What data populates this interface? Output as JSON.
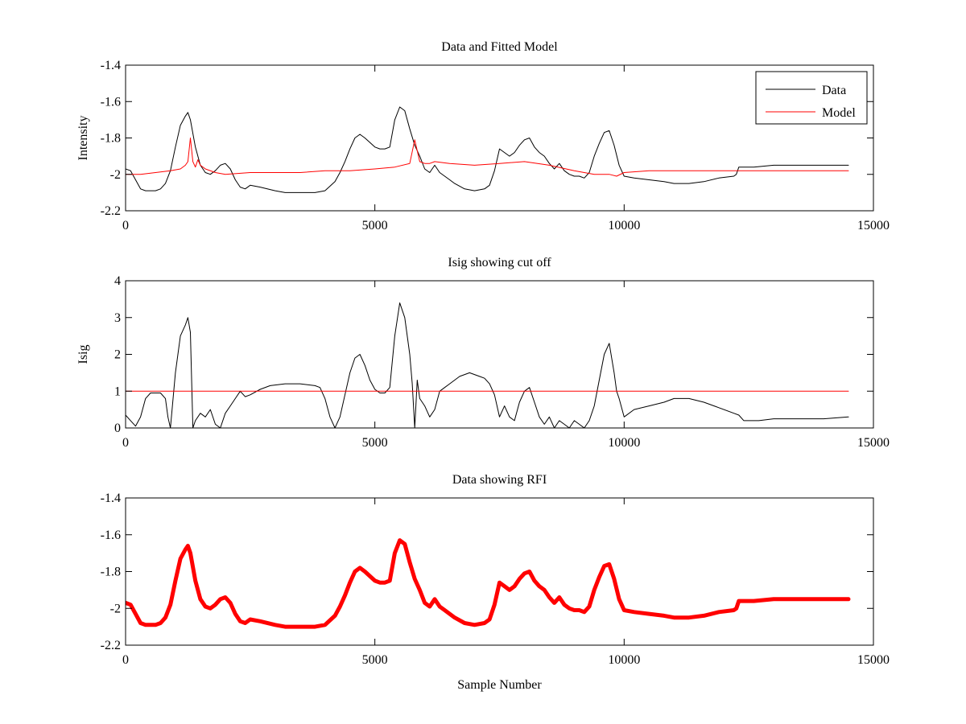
{
  "colors": {
    "data": "#000000",
    "model": "#ff0000",
    "rfi": "#ff0000",
    "axes": "#000000"
  },
  "chart_data": [
    {
      "type": "line",
      "title": "Data and Fitted Model",
      "xlabel": "",
      "ylabel": "Intensity",
      "xlim": [
        0,
        15000
      ],
      "ylim": [
        -2.2,
        -1.4
      ],
      "xticks": [
        0,
        5000,
        10000,
        15000
      ],
      "xtick_labels": [
        "0",
        "5000",
        "10000",
        "15000"
      ],
      "yticks": [
        -2.2,
        -2,
        -1.8,
        -1.6,
        -1.4
      ],
      "ytick_labels": [
        "-2.2",
        "-2",
        "-1.8",
        "-1.6",
        "-1.4"
      ],
      "grid": false,
      "legend": {
        "position": "top-right",
        "entries": [
          "Data",
          "Model"
        ]
      },
      "series": [
        {
          "name": "Data",
          "color": "#000000",
          "x": [
            0,
            100,
            200,
            300,
            400,
            600,
            700,
            800,
            900,
            1000,
            1100,
            1200,
            1250,
            1300,
            1400,
            1500,
            1600,
            1700,
            1800,
            1900,
            2000,
            2100,
            2200,
            2300,
            2400,
            2500,
            2700,
            3000,
            3200,
            3500,
            3800,
            4000,
            4200,
            4300,
            4400,
            4500,
            4600,
            4700,
            4800,
            5000,
            5100,
            5200,
            5300,
            5400,
            5500,
            5600,
            5700,
            5800,
            5900,
            6000,
            6100,
            6200,
            6300,
            6400,
            6500,
            6600,
            6800,
            7000,
            7200,
            7300,
            7400,
            7500,
            7600,
            7700,
            7800,
            7900,
            8000,
            8100,
            8200,
            8300,
            8400,
            8500,
            8600,
            8700,
            8800,
            8900,
            9000,
            9100,
            9200,
            9300,
            9400,
            9500,
            9600,
            9700,
            9800,
            9900,
            10000,
            10200,
            10500,
            10800,
            11000,
            11300,
            11600,
            11900,
            12200,
            12250,
            12300,
            12600,
            13000,
            13500,
            14000,
            14500
          ],
          "y": [
            -1.97,
            -1.98,
            -2.03,
            -2.08,
            -2.09,
            -2.09,
            -2.08,
            -2.05,
            -1.98,
            -1.85,
            -1.73,
            -1.68,
            -1.66,
            -1.7,
            -1.85,
            -1.95,
            -1.99,
            -2.0,
            -1.98,
            -1.95,
            -1.94,
            -1.97,
            -2.03,
            -2.07,
            -2.08,
            -2.06,
            -2.07,
            -2.09,
            -2.1,
            -2.1,
            -2.1,
            -2.09,
            -2.04,
            -1.99,
            -1.93,
            -1.86,
            -1.8,
            -1.78,
            -1.8,
            -1.85,
            -1.86,
            -1.86,
            -1.85,
            -1.7,
            -1.63,
            -1.65,
            -1.75,
            -1.84,
            -1.9,
            -1.97,
            -1.99,
            -1.95,
            -1.99,
            -2.01,
            -2.03,
            -2.05,
            -2.08,
            -2.09,
            -2.08,
            -2.06,
            -1.98,
            -1.86,
            -1.88,
            -1.9,
            -1.88,
            -1.84,
            -1.81,
            -1.8,
            -1.85,
            -1.88,
            -1.9,
            -1.94,
            -1.97,
            -1.94,
            -1.98,
            -2.0,
            -2.01,
            -2.01,
            -2.02,
            -1.99,
            -1.9,
            -1.83,
            -1.77,
            -1.76,
            -1.84,
            -1.95,
            -2.01,
            -2.02,
            -2.03,
            -2.04,
            -2.05,
            -2.05,
            -2.04,
            -2.02,
            -2.01,
            -2.0,
            -1.96,
            -1.96,
            -1.95,
            -1.95,
            -1.95,
            -1.95
          ]
        },
        {
          "name": "Model",
          "color": "#ff0000",
          "x": [
            0,
            300,
            600,
            900,
            1100,
            1200,
            1250,
            1300,
            1350,
            1400,
            1450,
            1500,
            1600,
            1800,
            2000,
            2500,
            3000,
            3500,
            4000,
            4500,
            5000,
            5400,
            5700,
            5800,
            5900,
            6000,
            6100,
            6200,
            6500,
            7000,
            7500,
            8000,
            8500,
            9000,
            9400,
            9700,
            9850,
            10000,
            10500,
            11000,
            12000,
            13000,
            14000,
            14500
          ],
          "y": [
            -2.0,
            -2.0,
            -1.99,
            -1.98,
            -1.97,
            -1.95,
            -1.93,
            -1.8,
            -1.93,
            -1.96,
            -1.92,
            -1.95,
            -1.97,
            -1.99,
            -2.0,
            -1.99,
            -1.99,
            -1.99,
            -1.98,
            -1.98,
            -1.97,
            -1.96,
            -1.94,
            -1.81,
            -1.93,
            -1.94,
            -1.94,
            -1.93,
            -1.94,
            -1.95,
            -1.94,
            -1.93,
            -1.95,
            -1.98,
            -2.0,
            -2.0,
            -2.01,
            -1.99,
            -1.98,
            -1.98,
            -1.98,
            -1.98,
            -1.98,
            -1.98
          ]
        }
      ]
    },
    {
      "type": "line",
      "title": "Isig showing cut off",
      "xlabel": "",
      "ylabel": "Isig",
      "xlim": [
        0,
        15000
      ],
      "ylim": [
        0,
        4
      ],
      "xticks": [
        0,
        5000,
        10000,
        15000
      ],
      "xtick_labels": [
        "0",
        "5000",
        "10000",
        "15000"
      ],
      "yticks": [
        0,
        1,
        2,
        3,
        4
      ],
      "ytick_labels": [
        "0",
        "1",
        "2",
        "3",
        "4"
      ],
      "grid": false,
      "series": [
        {
          "color": "#000000",
          "x": [
            0,
            100,
            200,
            300,
            400,
            500,
            600,
            700,
            800,
            850,
            900,
            1000,
            1100,
            1200,
            1250,
            1300,
            1350,
            1400,
            1500,
            1600,
            1700,
            1800,
            1900,
            2000,
            2100,
            2200,
            2300,
            2400,
            2500,
            2700,
            2900,
            3200,
            3500,
            3800,
            3900,
            4000,
            4100,
            4200,
            4300,
            4400,
            4500,
            4600,
            4700,
            4800,
            4900,
            5000,
            5100,
            5200,
            5300,
            5400,
            5500,
            5600,
            5700,
            5750,
            5800,
            5850,
            5900,
            6000,
            6100,
            6200,
            6300,
            6400,
            6500,
            6700,
            6900,
            7100,
            7200,
            7300,
            7400,
            7500,
            7600,
            7700,
            7800,
            7900,
            8000,
            8100,
            8200,
            8300,
            8400,
            8500,
            8600,
            8700,
            8800,
            8900,
            9000,
            9100,
            9200,
            9300,
            9400,
            9500,
            9600,
            9700,
            9800,
            9850,
            9900,
            10000,
            10200,
            10500,
            10800,
            11000,
            11300,
            11600,
            11900,
            12200,
            12300,
            12400,
            12700,
            13000,
            13500,
            14000,
            14500
          ],
          "y": [
            0.35,
            0.2,
            0.05,
            0.3,
            0.8,
            0.95,
            0.95,
            0.95,
            0.8,
            0.3,
            0.0,
            1.5,
            2.5,
            2.8,
            3.0,
            2.6,
            0.0,
            0.2,
            0.4,
            0.3,
            0.5,
            0.1,
            0.0,
            0.4,
            0.6,
            0.8,
            1.0,
            0.85,
            0.9,
            1.05,
            1.15,
            1.2,
            1.2,
            1.15,
            1.1,
            0.8,
            0.3,
            0.0,
            0.3,
            0.9,
            1.5,
            1.9,
            2.0,
            1.7,
            1.3,
            1.05,
            0.95,
            0.95,
            1.1,
            2.5,
            3.4,
            3.0,
            2.0,
            1.2,
            0.0,
            1.3,
            0.8,
            0.6,
            0.3,
            0.5,
            1.0,
            1.1,
            1.2,
            1.4,
            1.5,
            1.4,
            1.35,
            1.2,
            0.9,
            0.3,
            0.6,
            0.3,
            0.2,
            0.7,
            1.0,
            1.1,
            0.7,
            0.3,
            0.1,
            0.3,
            0.0,
            0.2,
            0.1,
            0.0,
            0.2,
            0.1,
            0.0,
            0.2,
            0.6,
            1.3,
            2.0,
            2.3,
            1.5,
            1.0,
            0.8,
            0.3,
            0.5,
            0.6,
            0.7,
            0.8,
            0.8,
            0.7,
            0.55,
            0.4,
            0.35,
            0.2,
            0.2,
            0.25,
            0.25,
            0.25,
            0.3
          ]
        },
        {
          "color": "#ff0000",
          "x": [
            0,
            14500
          ],
          "y": [
            1,
            1
          ]
        }
      ]
    },
    {
      "type": "line",
      "title": "Data showing RFI",
      "xlabel": "Sample Number",
      "ylabel": "",
      "xlim": [
        0,
        15000
      ],
      "ylim": [
        -2.2,
        -1.4
      ],
      "xticks": [
        0,
        5000,
        10000,
        15000
      ],
      "xtick_labels": [
        "0",
        "5000",
        "10000",
        "15000"
      ],
      "yticks": [
        -2.2,
        -2,
        -1.8,
        -1.6,
        -1.4
      ],
      "ytick_labels": [
        "-2.2",
        "-2",
        "-1.8",
        "-1.6",
        "-1.4"
      ],
      "grid": false,
      "series": [
        {
          "color": "#ff0000",
          "x": [
            0,
            100,
            200,
            300,
            400,
            600,
            700,
            800,
            900,
            1000,
            1100,
            1200,
            1250,
            1300,
            1400,
            1500,
            1600,
            1700,
            1800,
            1900,
            2000,
            2100,
            2200,
            2300,
            2400,
            2500,
            2700,
            3000,
            3200,
            3500,
            3800,
            4000,
            4200,
            4300,
            4400,
            4500,
            4600,
            4700,
            4800,
            5000,
            5100,
            5200,
            5300,
            5400,
            5500,
            5600,
            5700,
            5800,
            5900,
            6000,
            6100,
            6200,
            6300,
            6400,
            6500,
            6600,
            6800,
            7000,
            7200,
            7300,
            7400,
            7500,
            7600,
            7700,
            7800,
            7900,
            8000,
            8100,
            8200,
            8300,
            8400,
            8500,
            8600,
            8700,
            8800,
            8900,
            9000,
            9100,
            9200,
            9300,
            9400,
            9500,
            9600,
            9700,
            9800,
            9900,
            10000,
            10200,
            10500,
            10800,
            11000,
            11300,
            11600,
            11900,
            12200,
            12250,
            12300,
            12600,
            13000,
            13500,
            14000,
            14500
          ],
          "y": [
            -1.97,
            -1.98,
            -2.03,
            -2.08,
            -2.09,
            -2.09,
            -2.08,
            -2.05,
            -1.98,
            -1.85,
            -1.73,
            -1.68,
            -1.66,
            -1.7,
            -1.85,
            -1.95,
            -1.99,
            -2.0,
            -1.98,
            -1.95,
            -1.94,
            -1.97,
            -2.03,
            -2.07,
            -2.08,
            -2.06,
            -2.07,
            -2.09,
            -2.1,
            -2.1,
            -2.1,
            -2.09,
            -2.04,
            -1.99,
            -1.93,
            -1.86,
            -1.8,
            -1.78,
            -1.8,
            -1.85,
            -1.86,
            -1.86,
            -1.85,
            -1.7,
            -1.63,
            -1.65,
            -1.75,
            -1.84,
            -1.9,
            -1.97,
            -1.99,
            -1.95,
            -1.99,
            -2.01,
            -2.03,
            -2.05,
            -2.08,
            -2.09,
            -2.08,
            -2.06,
            -1.98,
            -1.86,
            -1.88,
            -1.9,
            -1.88,
            -1.84,
            -1.81,
            -1.8,
            -1.85,
            -1.88,
            -1.9,
            -1.94,
            -1.97,
            -1.94,
            -1.98,
            -2.0,
            -2.01,
            -2.01,
            -2.02,
            -1.99,
            -1.9,
            -1.83,
            -1.77,
            -1.76,
            -1.84,
            -1.95,
            -2.01,
            -2.02,
            -2.03,
            -2.04,
            -2.05,
            -2.05,
            -2.04,
            -2.02,
            -2.01,
            -2.0,
            -1.96,
            -1.96,
            -1.95,
            -1.95,
            -1.95,
            -1.95
          ]
        }
      ]
    }
  ]
}
